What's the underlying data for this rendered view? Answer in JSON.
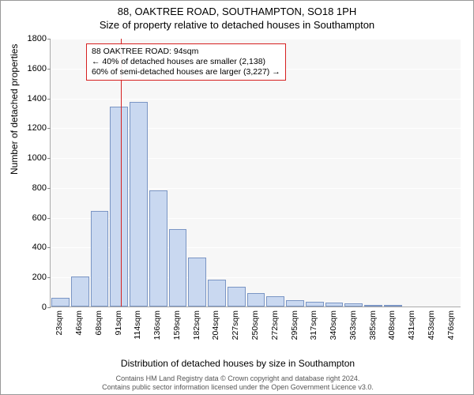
{
  "title_line1": "88, OAKTREE ROAD, SOUTHAMPTON, SO18 1PH",
  "title_line2": "Size of property relative to detached houses in Southampton",
  "ylabel": "Number of detached properties",
  "xlabel": "Distribution of detached houses by size in Southampton",
  "footer_line1": "Contains HM Land Registry data © Crown copyright and database right 2024.",
  "footer_line2": "Contains public sector information licensed under the Open Government Licence v3.0.",
  "chart": {
    "type": "histogram",
    "background_color": "#f7f7f7",
    "bar_fill": "#c9d8f0",
    "bar_border": "#7a95c4",
    "grid_color": "#ffffff",
    "ref_line_color": "#d62020",
    "ylim": [
      0,
      1800
    ],
    "yticks": [
      0,
      200,
      400,
      600,
      800,
      1000,
      1200,
      1400,
      1600,
      1800
    ],
    "xticks": [
      "23sqm",
      "46sqm",
      "68sqm",
      "91sqm",
      "114sqm",
      "136sqm",
      "159sqm",
      "182sqm",
      "204sqm",
      "227sqm",
      "250sqm",
      "272sqm",
      "295sqm",
      "317sqm",
      "340sqm",
      "363sqm",
      "385sqm",
      "408sqm",
      "431sqm",
      "453sqm",
      "476sqm"
    ],
    "values": [
      60,
      200,
      640,
      1340,
      1370,
      780,
      520,
      330,
      180,
      130,
      90,
      70,
      40,
      30,
      25,
      20,
      10,
      10,
      0,
      0,
      0
    ],
    "ref_line_x_index": 3.1,
    "annot": {
      "line1": "88 OAKTREE ROAD: 94sqm",
      "line2": "← 40% of detached houses are smaller (2,138)",
      "line3": "60% of semi-detached houses are larger (3,227) →"
    }
  }
}
